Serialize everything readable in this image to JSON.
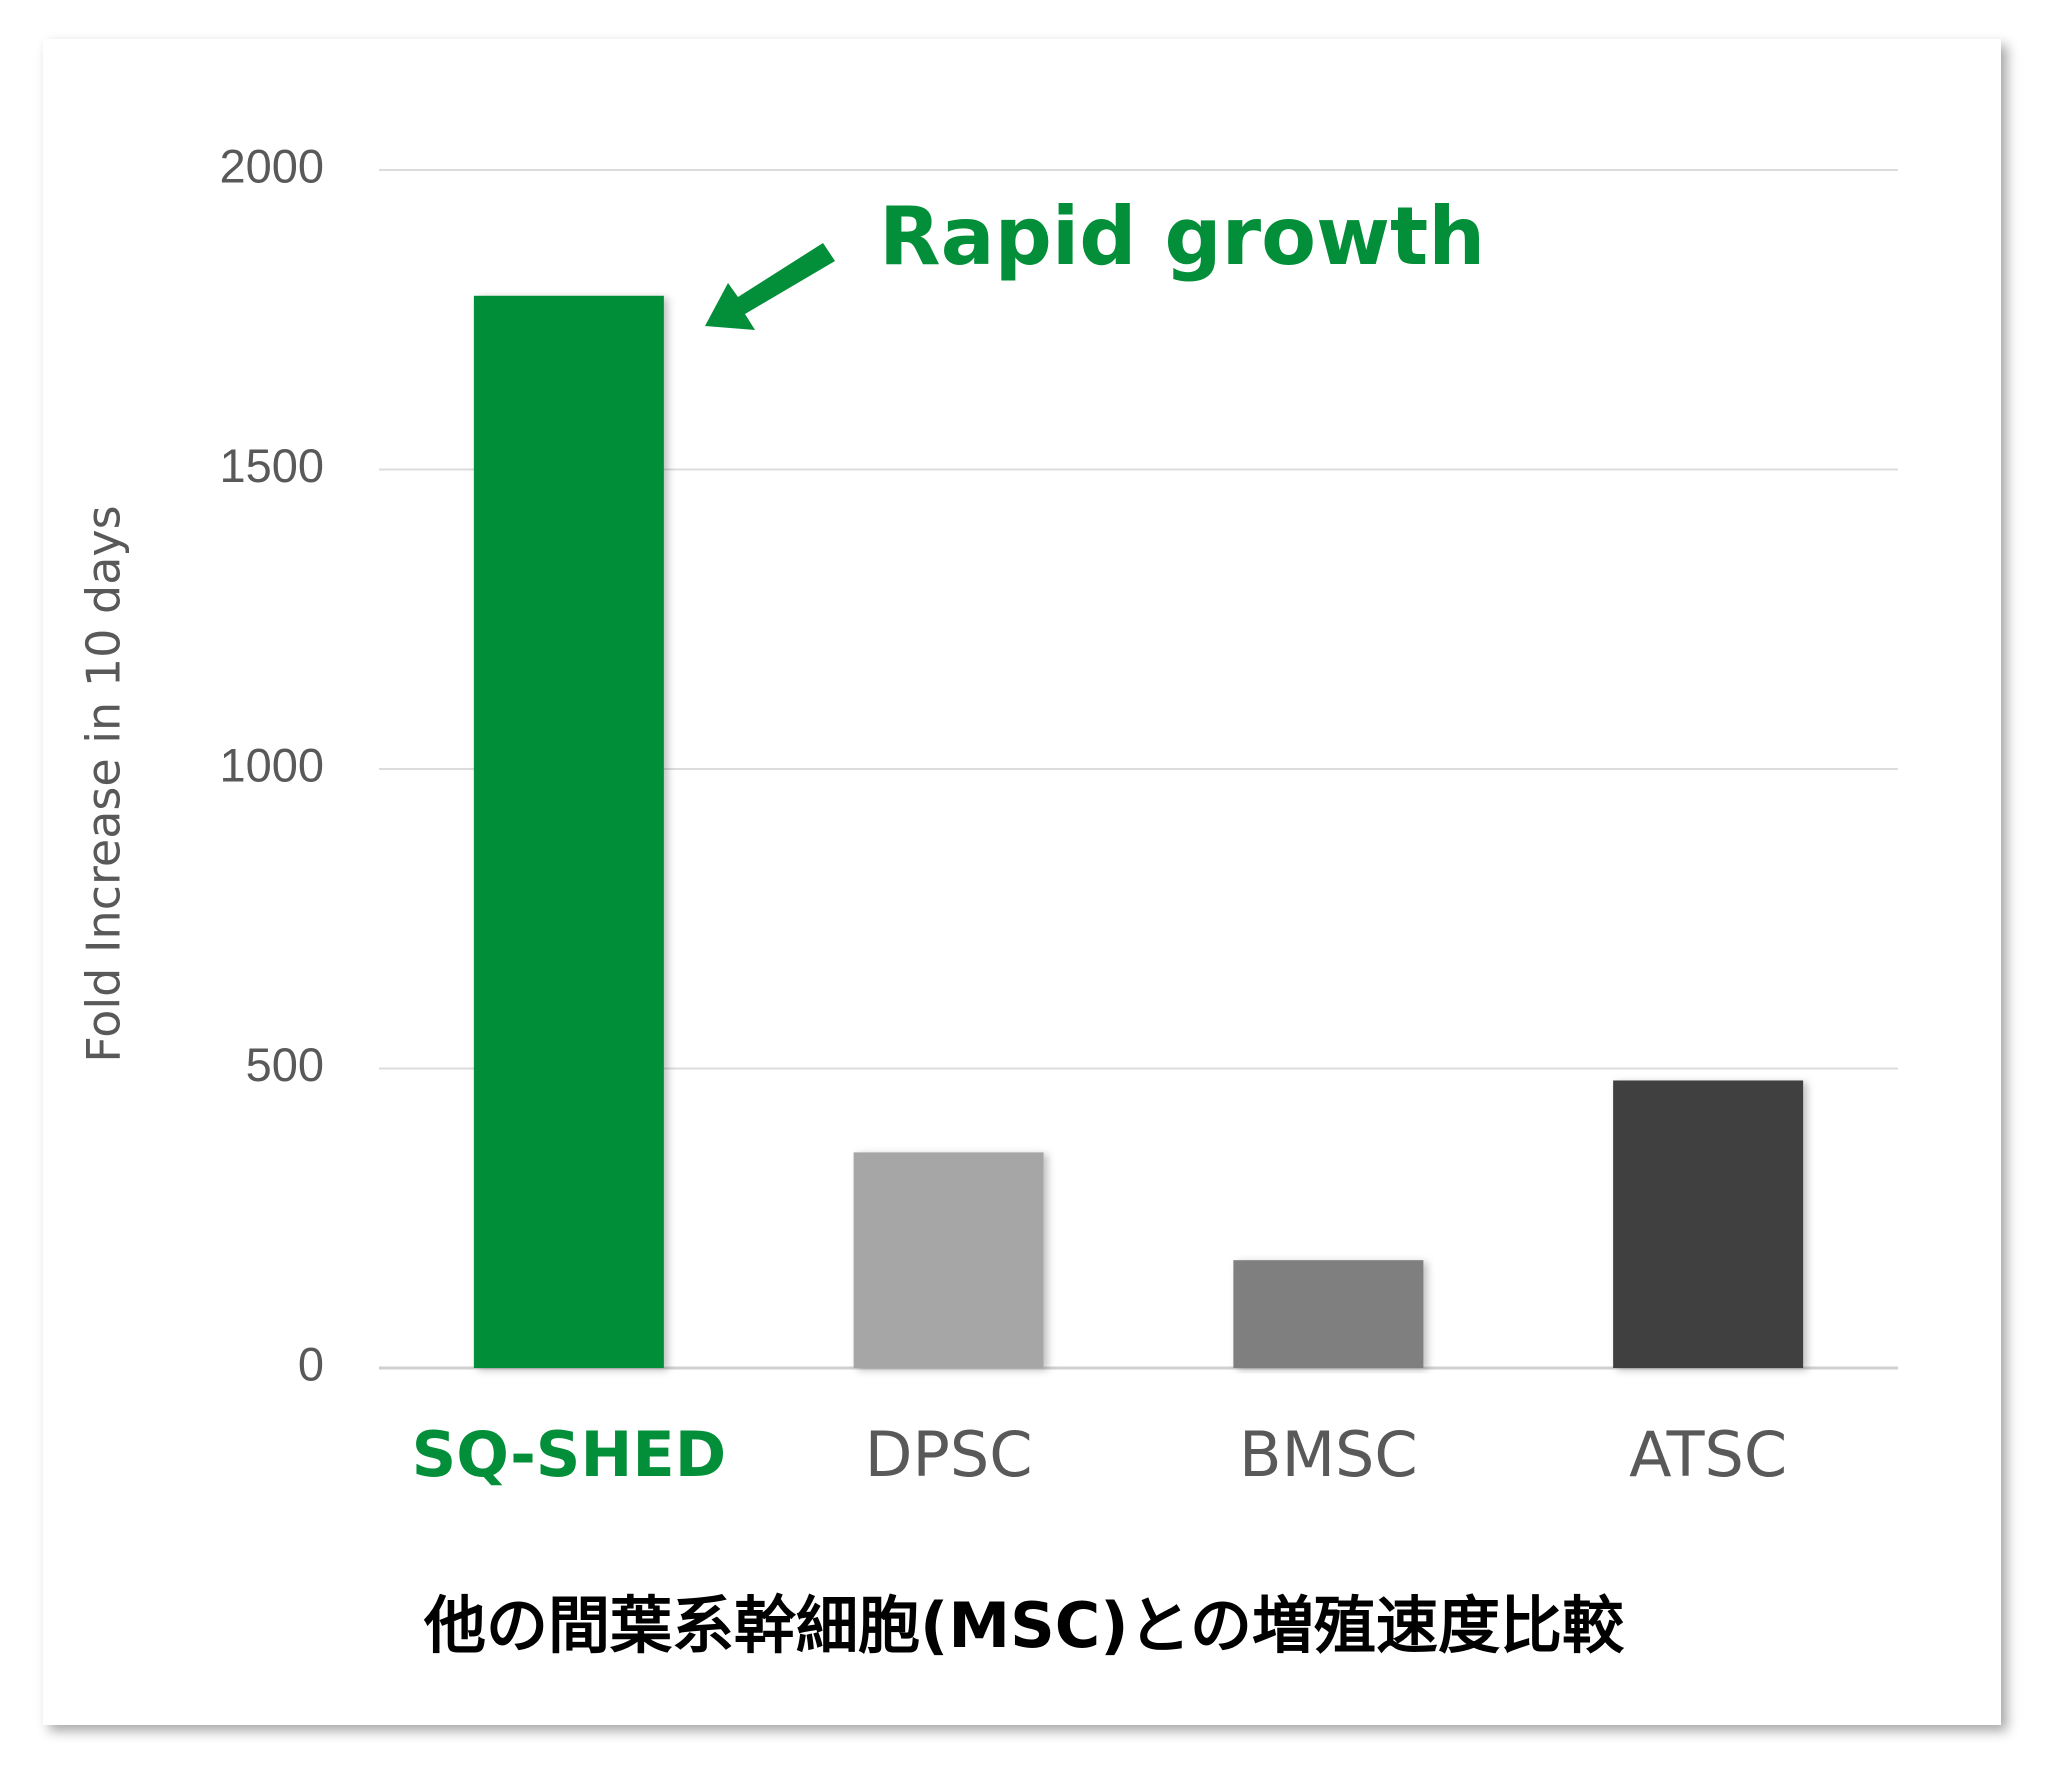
{
  "chart_data": {
    "type": "bar",
    "title": "他の間葉系幹細胞(MSC)との増殖速度比較",
    "ylabel": "Fold Increase in 10 days",
    "annotation": "Rapid growth",
    "annotation_color": "#038f39",
    "categories": [
      "SQ-SHED",
      "DPSC",
      "BMSC",
      "ATSC"
    ],
    "category_label_colors": [
      "#038f39",
      "#595959",
      "#595959",
      "#595959"
    ],
    "values": [
      1790,
      360,
      180,
      480
    ],
    "colors": [
      "#038f39",
      "#a6a6a6",
      "#7f7f7f",
      "#404040"
    ],
    "ylim": [
      0,
      2000
    ],
    "yticks": [
      0,
      500,
      1000,
      1500,
      2000
    ],
    "grid": true
  }
}
